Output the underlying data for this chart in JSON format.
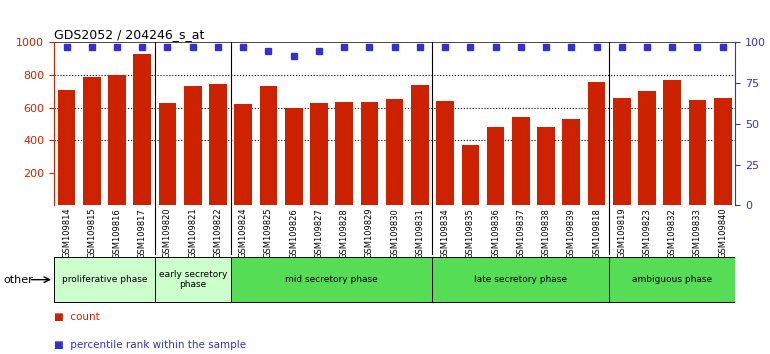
{
  "title": "GDS2052 / 204246_s_at",
  "samples": [
    "GSM109814",
    "GSM109815",
    "GSM109816",
    "GSM109817",
    "GSM109820",
    "GSM109821",
    "GSM109822",
    "GSM109824",
    "GSM109825",
    "GSM109826",
    "GSM109827",
    "GSM109828",
    "GSM109829",
    "GSM109830",
    "GSM109831",
    "GSM109834",
    "GSM109835",
    "GSM109836",
    "GSM109837",
    "GSM109838",
    "GSM109839",
    "GSM109818",
    "GSM109819",
    "GSM109823",
    "GSM109832",
    "GSM109833",
    "GSM109840"
  ],
  "counts": [
    710,
    790,
    800,
    930,
    630,
    730,
    745,
    620,
    730,
    600,
    630,
    635,
    635,
    650,
    740,
    640,
    370,
    480,
    540,
    480,
    530,
    760,
    660,
    700,
    770,
    645,
    660
  ],
  "percentile_ranks": [
    97,
    97,
    97,
    97,
    97,
    97,
    97,
    97,
    95,
    92,
    95,
    97,
    97,
    97,
    97,
    97,
    97,
    97,
    97,
    97,
    97,
    97,
    97,
    97,
    97,
    97,
    97
  ],
  "bar_color": "#cc2200",
  "dot_color": "#3333cc",
  "phases": [
    {
      "name": "proliferative phase",
      "start": 0,
      "end": 4,
      "color": "#ccffcc"
    },
    {
      "name": "early secretory\nphase",
      "start": 4,
      "end": 7,
      "color": "#ccffcc"
    },
    {
      "name": "mid secretory phase",
      "start": 7,
      "end": 15,
      "color": "#55dd55"
    },
    {
      "name": "late secretory phase",
      "start": 15,
      "end": 22,
      "color": "#55dd55"
    },
    {
      "name": "ambiguous phase",
      "start": 22,
      "end": 27,
      "color": "#55dd55"
    }
  ],
  "ylim_left": [
    0,
    1000
  ],
  "ylim_right": [
    0,
    100
  ],
  "yticks_left": [
    200,
    400,
    600,
    800,
    1000
  ],
  "yticks_right": [
    0,
    25,
    50,
    75,
    100
  ],
  "grid_values": [
    400,
    600,
    800
  ],
  "chart_bg": "#ffffff",
  "tick_bg": "#d8d8d8",
  "phase_separator_indices": [
    4,
    7,
    15,
    22
  ],
  "dot_yval": 97
}
